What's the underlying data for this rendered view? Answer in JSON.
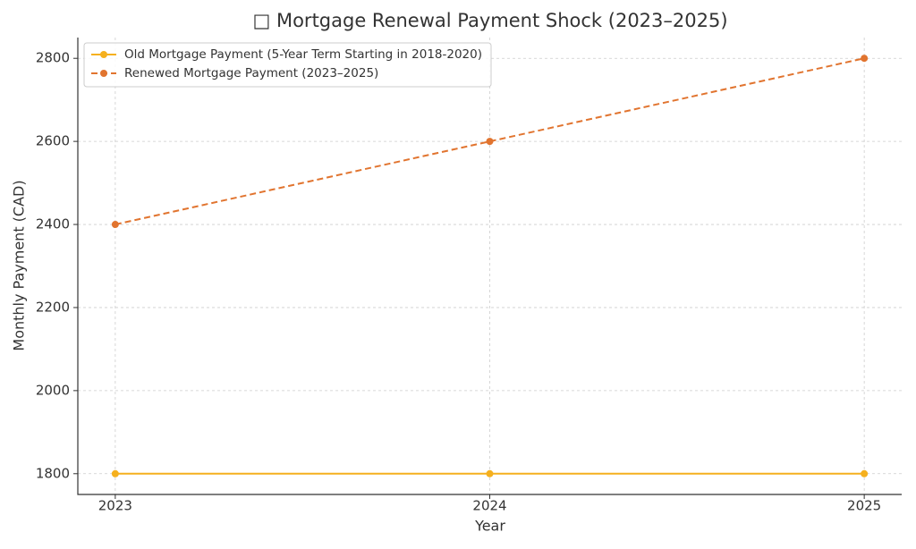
{
  "chart_data": {
    "type": "line",
    "title": "□ Mortgage Renewal Payment Shock (2023–2025)",
    "xlabel": "Year",
    "ylabel": "Monthly Payment (CAD)",
    "x": [
      2023,
      2024,
      2025
    ],
    "series": [
      {
        "name": "Old Mortgage Payment (5-Year Term Starting in 2018-2020)",
        "color": "#f5b01e",
        "linestyle": "solid",
        "values": [
          1800,
          1800,
          1800
        ]
      },
      {
        "name": "Renewed Mortgage Payment (2023–2025)",
        "color": "#e1742f",
        "linestyle": "dashed",
        "values": [
          2400,
          2600,
          2800
        ]
      }
    ],
    "xlim": [
      2022.9,
      2025.1
    ],
    "ylim": [
      1750,
      2850
    ],
    "xticks": [
      2023,
      2024,
      2025
    ],
    "yticks": [
      1800,
      2000,
      2200,
      2400,
      2600,
      2800
    ],
    "grid": true,
    "legend": "upper left"
  }
}
